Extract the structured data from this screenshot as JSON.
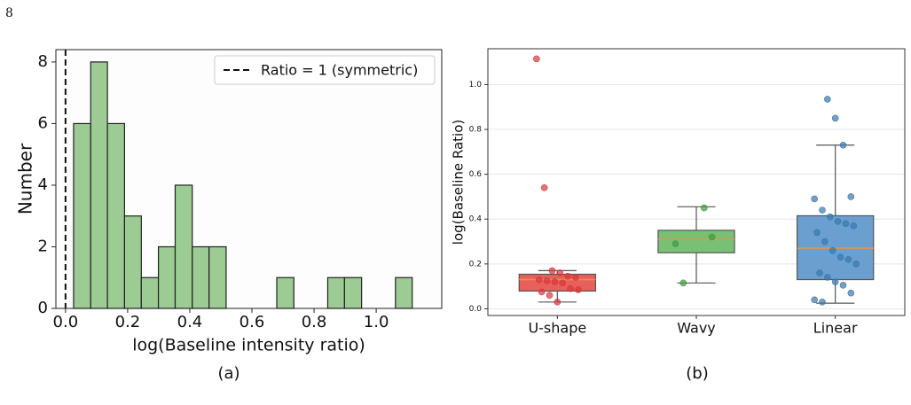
{
  "page_number": "8",
  "captions": [
    "(a)",
    "(b)"
  ],
  "chart_data": [
    {
      "type": "histogram",
      "xlabel": "log(Baseline intensity ratio)",
      "ylabel": "Number",
      "bins": [
        0.026,
        0.081,
        0.135,
        0.19,
        0.244,
        0.299,
        0.353,
        0.408,
        0.462,
        0.517,
        0.571,
        0.626,
        0.68,
        0.735,
        0.789,
        0.844,
        0.898,
        0.953,
        1.007,
        1.062,
        1.116
      ],
      "values": [
        6,
        8,
        6,
        3,
        1,
        2,
        4,
        2,
        2,
        0,
        0,
        0,
        1,
        0,
        0,
        1,
        1,
        0,
        0,
        1
      ],
      "color": "#9dcb94",
      "edgecolor": "#222222",
      "xlim": [
        -0.031,
        1.211
      ],
      "ylim": [
        0,
        8.4
      ],
      "xticks": [
        {
          "value": 0,
          "label": "0.0"
        },
        {
          "value": 0.2,
          "label": "0.2"
        },
        {
          "value": 0.4,
          "label": "0.4"
        },
        {
          "value": 0.6,
          "label": "0.6"
        },
        {
          "value": 0.8,
          "label": "0.8"
        },
        {
          "value": 1,
          "label": "1.0"
        }
      ],
      "yticks": [
        0,
        2,
        4,
        6,
        8
      ],
      "reference_line": {
        "x": 0,
        "name": "Ratio = 1 (symmetric)",
        "color": "#111111"
      },
      "legend": "upper right"
    },
    {
      "type": "box",
      "ylabel": "log(Baseline Ratio)",
      "categories": [
        "U-shape",
        "Wavy",
        "Linear"
      ],
      "colors": [
        "#e8605c",
        "#78c174",
        "#6a9fcf"
      ],
      "point_colors": [
        "#d9383a",
        "#3f9a3f",
        "#3a78ad"
      ],
      "median_color": "#e0954a",
      "boxes": [
        {
          "min": 0.03,
          "q1": 0.079,
          "median": 0.13,
          "q3": 0.154,
          "max": 0.17
        },
        {
          "min": 0.115,
          "q1": 0.25,
          "median": 0.31,
          "q3": 0.35,
          "max": 0.455
        },
        {
          "min": 0.025,
          "q1": 0.13,
          "median": 0.27,
          "q3": 0.415,
          "max": 0.73
        }
      ],
      "points": [
        [
          1.115,
          0.54,
          0.17,
          0.16,
          0.145,
          0.14,
          0.13,
          0.125,
          0.12,
          0.115,
          0.09,
          0.085,
          0.075,
          0.06,
          0.03
        ],
        [
          0.45,
          0.32,
          0.29,
          0.115
        ],
        [
          0.935,
          0.85,
          0.73,
          0.5,
          0.49,
          0.44,
          0.41,
          0.39,
          0.38,
          0.37,
          0.34,
          0.3,
          0.26,
          0.23,
          0.22,
          0.2,
          0.16,
          0.14,
          0.12,
          0.105,
          0.07,
          0.04,
          0.03
        ]
      ],
      "ylim": [
        -0.03,
        1.16
      ],
      "yticks": [
        {
          "value": 0,
          "label": "0.0"
        },
        {
          "value": 0.2,
          "label": "0.2"
        },
        {
          "value": 0.4,
          "label": "0.4"
        },
        {
          "value": 0.6,
          "label": "0.6"
        },
        {
          "value": 0.8,
          "label": "0.8"
        },
        {
          "value": 1,
          "label": "1.0"
        }
      ],
      "grid": true
    }
  ]
}
